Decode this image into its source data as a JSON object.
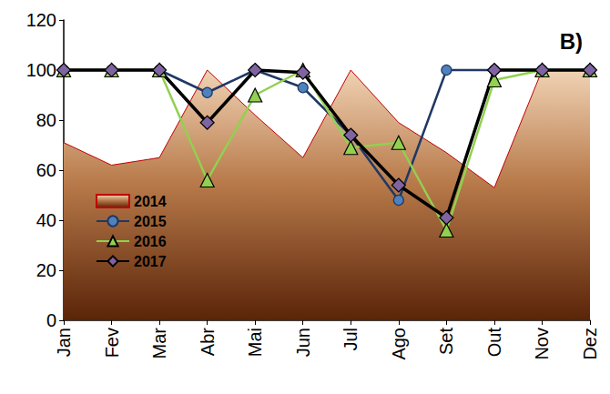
{
  "chart_data": {
    "type": "line",
    "annotation": "B)",
    "categories": [
      "Jan",
      "Fev",
      "Mar",
      "Abr",
      "Mai",
      "Jun",
      "Jul",
      "Ago",
      "Set",
      "Out",
      "Nov",
      "Dez"
    ],
    "series": [
      {
        "name": "2014",
        "type": "area",
        "color": "#c00000",
        "marker": "none",
        "values": [
          71,
          62,
          65,
          100,
          82,
          65,
          100,
          79,
          67,
          53,
          100,
          100
        ]
      },
      {
        "name": "2015",
        "type": "line",
        "color": "#1f3864",
        "marker": "circle",
        "values": [
          100,
          100,
          100,
          91,
          100,
          93,
          74,
          48,
          100,
          100,
          100,
          100
        ]
      },
      {
        "name": "2016",
        "type": "line",
        "color": "#92d050",
        "marker": "triangle",
        "values": [
          100,
          100,
          100,
          56,
          90,
          100,
          69,
          71,
          36,
          96,
          100,
          100
        ]
      },
      {
        "name": "2017",
        "type": "line",
        "color": "#000000",
        "marker": "diamond",
        "values": [
          100,
          100,
          100,
          79,
          100,
          99,
          74,
          54,
          41,
          100,
          100,
          100
        ]
      }
    ],
    "ylim": [
      0,
      120
    ],
    "yticks": [
      0,
      20,
      40,
      60,
      80,
      100,
      120
    ],
    "grid": false,
    "legend": "lower left"
  }
}
